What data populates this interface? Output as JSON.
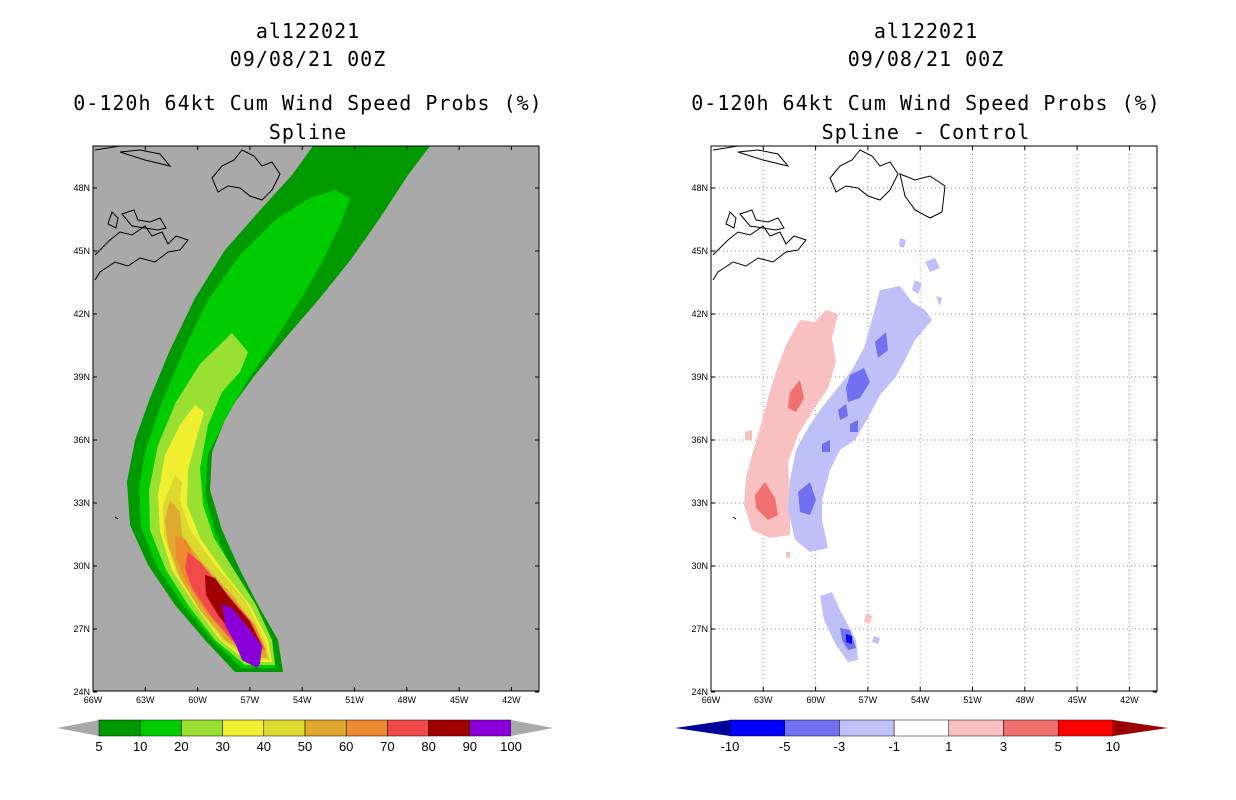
{
  "left_panel": {
    "storm_id": "al122021",
    "datetime": "09/08/21 00Z",
    "product": "0-120h 64kt Cum Wind Speed Probs (%)",
    "subtitle": "Spline",
    "lon_ticks": [
      "66W",
      "63W",
      "60W",
      "57W",
      "54W",
      "51W",
      "48W",
      "45W",
      "42W"
    ],
    "lat_ticks": [
      "48N",
      "45N",
      "42N",
      "39N",
      "36N",
      "33N",
      "30N",
      "27N",
      "24N"
    ],
    "background_color": "#a9a9a9",
    "colorbar": {
      "labels": [
        "5",
        "10",
        "20",
        "30",
        "40",
        "50",
        "60",
        "70",
        "80",
        "90",
        "100"
      ],
      "colors": [
        "#009900",
        "#00cc00",
        "#99e033",
        "#f0f030",
        "#d9d930",
        "#e0aa30",
        "#ee8a30",
        "#f04a4a",
        "#a00000",
        "#8a00d8"
      ]
    }
  },
  "right_panel": {
    "storm_id": "al122021",
    "datetime": "09/08/21 00Z",
    "product": "0-120h 64kt Cum Wind Speed Probs (%)",
    "subtitle": "Spline - Control",
    "lon_ticks": [
      "66W",
      "63W",
      "60W",
      "57W",
      "54W",
      "51W",
      "48W",
      "45W",
      "42W"
    ],
    "lat_ticks": [
      "48N",
      "45N",
      "42N",
      "39N",
      "36N",
      "33N",
      "30N",
      "27N",
      "24N"
    ],
    "background_color": "#ffffff",
    "colorbar": {
      "labels": [
        "-10",
        "-5",
        "-3",
        "-1",
        "1",
        "3",
        "5",
        "10"
      ],
      "colors": [
        "#0000ff",
        "#7070f0",
        "#c0c0f8",
        "#ffffff",
        "#f8c0c0",
        "#f07070",
        "#ff0000"
      ],
      "end_colors": [
        "#00009a",
        "#9a0000"
      ]
    }
  }
}
